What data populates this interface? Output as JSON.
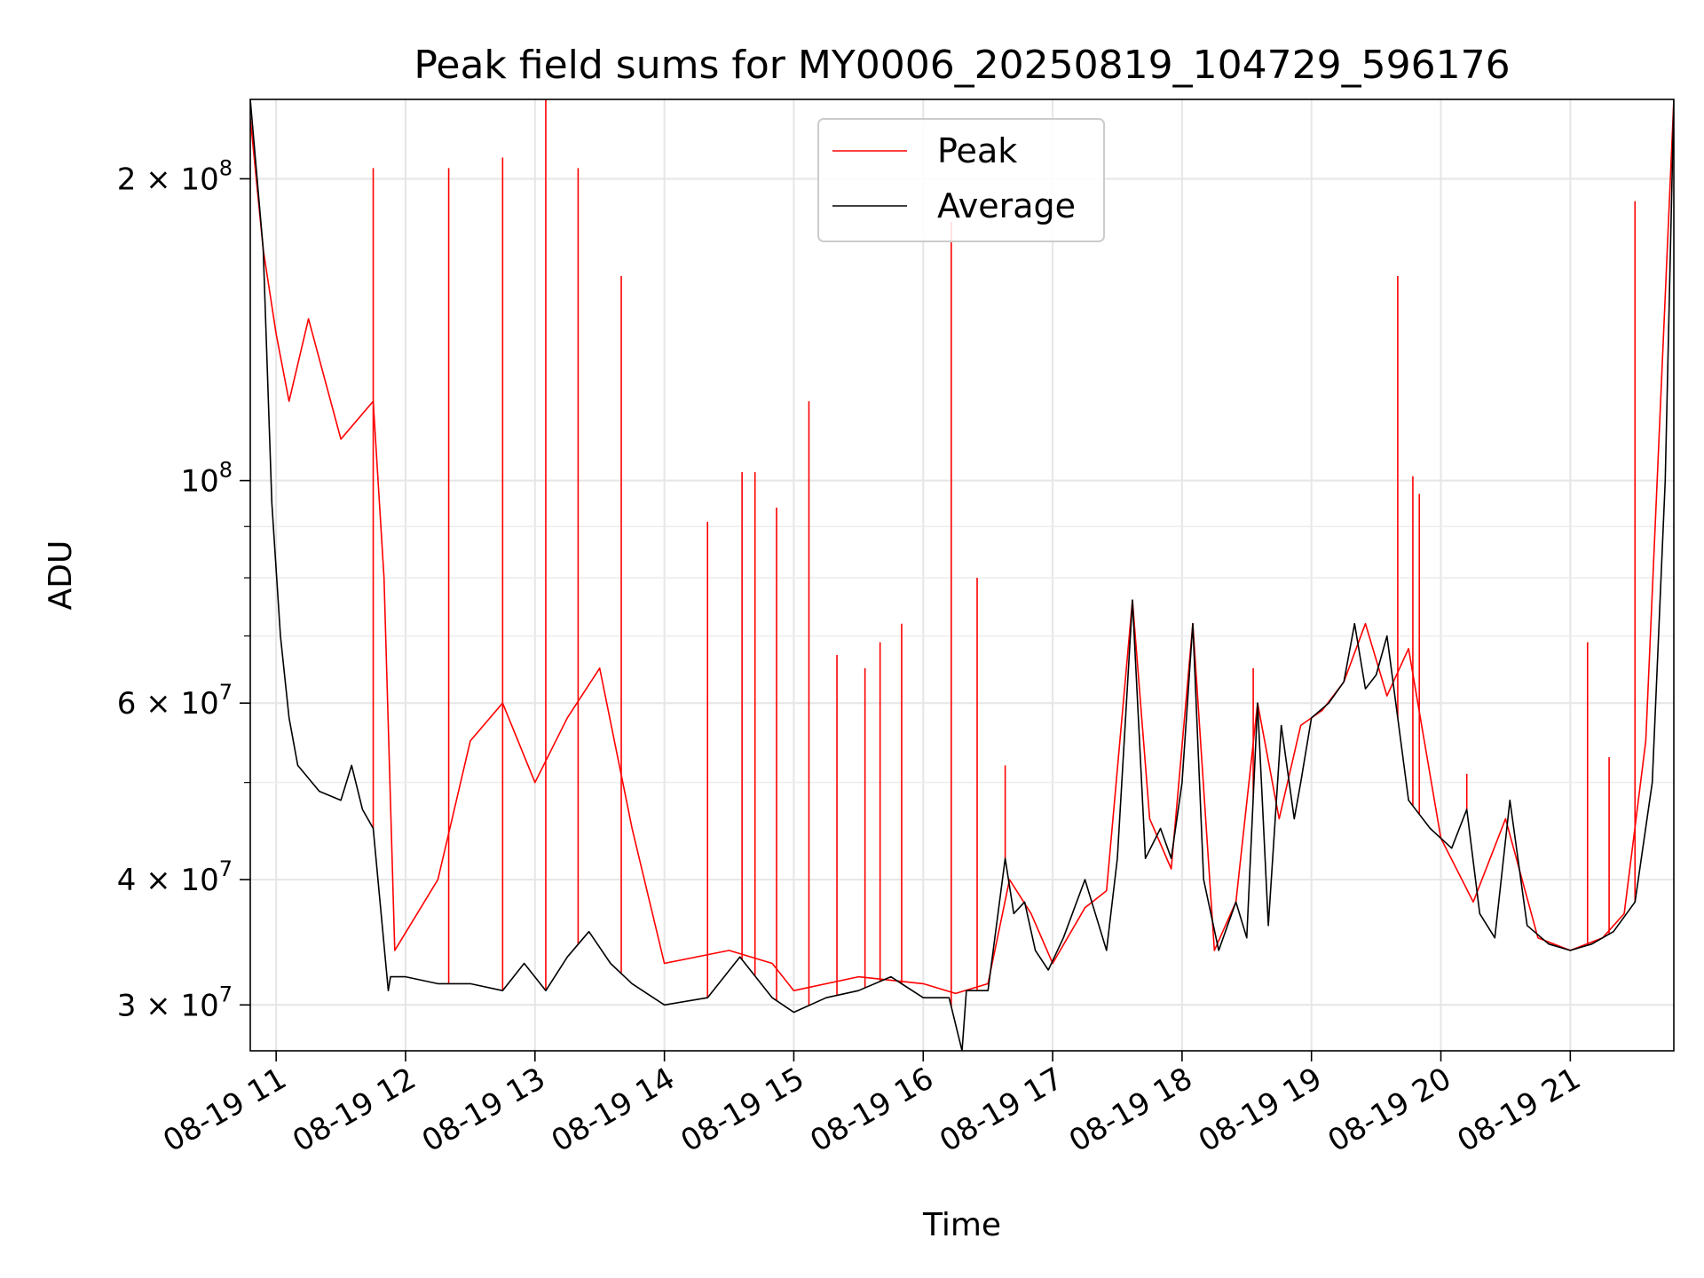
{
  "chart_data": {
    "type": "line",
    "title": "Peak field sums for MY0006_20250819_104729_596176",
    "xlabel": "Time",
    "ylabel": "ADU",
    "yscale": "log",
    "ylim": [
      27000000,
      240000000
    ],
    "xlim": [
      "2025-08-19 10:48",
      "2025-08-19 21:48"
    ],
    "grid": true,
    "legend_position": "top-center",
    "x_tick_labels": [
      "08-19 11",
      "08-19 12",
      "08-19 13",
      "08-19 14",
      "08-19 15",
      "08-19 16",
      "08-19 17",
      "08-19 18",
      "08-19 19",
      "08-19 20",
      "08-19 21"
    ],
    "x_ticks": [
      "2025-08-19 11:00",
      "2025-08-19 12:00",
      "2025-08-19 13:00",
      "2025-08-19 14:00",
      "2025-08-19 15:00",
      "2025-08-19 16:00",
      "2025-08-19 17:00",
      "2025-08-19 18:00",
      "2025-08-19 19:00",
      "2025-08-19 20:00",
      "2025-08-19 21:00"
    ],
    "y_tick_labels": [
      {
        "value": 30000000,
        "mantissa": "3",
        "exp": "7"
      },
      {
        "value": 40000000,
        "mantissa": "4",
        "exp": "7"
      },
      {
        "value": 60000000,
        "mantissa": "6",
        "exp": "7"
      },
      {
        "value": 100000000,
        "mantissa": "",
        "exp": "8"
      },
      {
        "value": 200000000,
        "mantissa": "2",
        "exp": "8"
      }
    ],
    "y_minor_ticks": [
      50000000,
      70000000,
      80000000,
      90000000
    ],
    "series": [
      {
        "name": "Peak",
        "color": "#ff0000",
        "x": [
          "2025-08-19 10:48",
          "2025-08-19 10:54",
          "2025-08-19 11:00",
          "2025-08-19 11:06",
          "2025-08-19 11:15",
          "2025-08-19 11:30",
          "2025-08-19 11:45",
          "2025-08-19 11:50",
          "2025-08-19 11:55",
          "2025-08-19 12:15",
          "2025-08-19 12:30",
          "2025-08-19 12:45",
          "2025-08-19 13:00",
          "2025-08-19 13:15",
          "2025-08-19 13:30",
          "2025-08-19 13:45",
          "2025-08-19 14:00",
          "2025-08-19 14:30",
          "2025-08-19 14:50",
          "2025-08-19 15:00",
          "2025-08-19 15:30",
          "2025-08-19 16:00",
          "2025-08-19 16:15",
          "2025-08-19 16:30",
          "2025-08-19 16:40",
          "2025-08-19 16:50",
          "2025-08-19 17:00",
          "2025-08-19 17:15",
          "2025-08-19 17:25",
          "2025-08-19 17:37",
          "2025-08-19 17:45",
          "2025-08-19 17:55",
          "2025-08-19 18:05",
          "2025-08-19 18:15",
          "2025-08-19 18:25",
          "2025-08-19 18:35",
          "2025-08-19 18:45",
          "2025-08-19 18:55",
          "2025-08-19 19:05",
          "2025-08-19 19:15",
          "2025-08-19 19:25",
          "2025-08-19 19:35",
          "2025-08-19 19:45",
          "2025-08-19 20:00",
          "2025-08-19 20:15",
          "2025-08-19 20:30",
          "2025-08-19 20:45",
          "2025-08-19 21:00",
          "2025-08-19 21:15",
          "2025-08-19 21:25",
          "2025-08-19 21:35",
          "2025-08-19 21:48"
        ],
        "y": [
          230000000,
          170000000,
          140000000,
          120000000,
          145000000,
          110000000,
          120000000,
          80000000,
          34000000,
          40000000,
          55000000,
          60000000,
          50000000,
          58000000,
          65000000,
          45000000,
          33000000,
          34000000,
          33000000,
          31000000,
          32000000,
          31500000,
          30800000,
          31500000,
          40000000,
          37000000,
          33000000,
          37500000,
          39000000,
          76000000,
          46000000,
          41000000,
          72000000,
          34000000,
          38000000,
          60000000,
          46000000,
          57000000,
          59000000,
          63000000,
          72000000,
          61000000,
          68000000,
          44000000,
          38000000,
          46000000,
          35000000,
          34000000,
          35000000,
          37000000,
          55000000,
          240000000
        ],
        "spikes": [
          {
            "x": "2025-08-19 11:45",
            "y": 205000000
          },
          {
            "x": "2025-08-19 12:20",
            "y": 205000000
          },
          {
            "x": "2025-08-19 12:45",
            "y": 210000000
          },
          {
            "x": "2025-08-19 13:05",
            "y": 240000000
          },
          {
            "x": "2025-08-19 13:20",
            "y": 205000000
          },
          {
            "x": "2025-08-19 13:40",
            "y": 160000000
          },
          {
            "x": "2025-08-19 14:20",
            "y": 91000000
          },
          {
            "x": "2025-08-19 14:36",
            "y": 102000000
          },
          {
            "x": "2025-08-19 14:42",
            "y": 102000000
          },
          {
            "x": "2025-08-19 14:52",
            "y": 94000000
          },
          {
            "x": "2025-08-19 15:07",
            "y": 120000000
          },
          {
            "x": "2025-08-19 15:20",
            "y": 67000000
          },
          {
            "x": "2025-08-19 15:33",
            "y": 65000000
          },
          {
            "x": "2025-08-19 15:40",
            "y": 69000000
          },
          {
            "x": "2025-08-19 15:50",
            "y": 72000000
          },
          {
            "x": "2025-08-19 16:13",
            "y": 181000000
          },
          {
            "x": "2025-08-19 16:25",
            "y": 80000000
          },
          {
            "x": "2025-08-19 16:38",
            "y": 52000000
          },
          {
            "x": "2025-08-19 18:33",
            "y": 65000000
          },
          {
            "x": "2025-08-19 19:40",
            "y": 160000000
          },
          {
            "x": "2025-08-19 19:47",
            "y": 101000000
          },
          {
            "x": "2025-08-19 19:50",
            "y": 97000000
          },
          {
            "x": "2025-08-19 20:12",
            "y": 51000000
          },
          {
            "x": "2025-08-19 21:08",
            "y": 69000000
          },
          {
            "x": "2025-08-19 21:18",
            "y": 53000000
          },
          {
            "x": "2025-08-19 21:30",
            "y": 190000000
          }
        ]
      },
      {
        "name": "Average",
        "color": "#000000",
        "x": [
          "2025-08-19 10:48",
          "2025-08-19 10:54",
          "2025-08-19 10:58",
          "2025-08-19 11:02",
          "2025-08-19 11:06",
          "2025-08-19 11:10",
          "2025-08-19 11:20",
          "2025-08-19 11:30",
          "2025-08-19 11:35",
          "2025-08-19 11:40",
          "2025-08-19 11:45",
          "2025-08-19 11:52",
          "2025-08-19 11:53",
          "2025-08-19 12:00",
          "2025-08-19 12:15",
          "2025-08-19 12:30",
          "2025-08-19 12:45",
          "2025-08-19 12:55",
          "2025-08-19 13:05",
          "2025-08-19 13:15",
          "2025-08-19 13:25",
          "2025-08-19 13:35",
          "2025-08-19 13:45",
          "2025-08-19 14:00",
          "2025-08-19 14:20",
          "2025-08-19 14:35",
          "2025-08-19 14:50",
          "2025-08-19 15:00",
          "2025-08-19 15:15",
          "2025-08-19 15:30",
          "2025-08-19 15:45",
          "2025-08-19 16:00",
          "2025-08-19 16:12",
          "2025-08-19 16:18",
          "2025-08-19 16:20",
          "2025-08-19 16:30",
          "2025-08-19 16:38",
          "2025-08-19 16:42",
          "2025-08-19 16:47",
          "2025-08-19 16:52",
          "2025-08-19 16:58",
          "2025-08-19 17:05",
          "2025-08-19 17:15",
          "2025-08-19 17:25",
          "2025-08-19 17:30",
          "2025-08-19 17:37",
          "2025-08-19 17:43",
          "2025-08-19 17:50",
          "2025-08-19 17:55",
          "2025-08-19 18:00",
          "2025-08-19 18:05",
          "2025-08-19 18:10",
          "2025-08-19 18:17",
          "2025-08-19 18:25",
          "2025-08-19 18:30",
          "2025-08-19 18:35",
          "2025-08-19 18:40",
          "2025-08-19 18:46",
          "2025-08-19 18:52",
          "2025-08-19 18:55",
          "2025-08-19 19:00",
          "2025-08-19 19:08",
          "2025-08-19 19:15",
          "2025-08-19 19:20",
          "2025-08-19 19:25",
          "2025-08-19 19:30",
          "2025-08-19 19:35",
          "2025-08-19 19:45",
          "2025-08-19 19:55",
          "2025-08-19 20:05",
          "2025-08-19 20:12",
          "2025-08-19 20:18",
          "2025-08-19 20:25",
          "2025-08-19 20:32",
          "2025-08-19 20:40",
          "2025-08-19 20:50",
          "2025-08-19 21:00",
          "2025-08-19 21:10",
          "2025-08-19 21:20",
          "2025-08-19 21:30",
          "2025-08-19 21:38",
          "2025-08-19 21:44",
          "2025-08-19 21:48"
        ],
        "y": [
          240000000,
          170000000,
          95000000,
          70000000,
          58000000,
          52000000,
          49000000,
          48000000,
          52000000,
          47000000,
          45000000,
          31000000,
          32000000,
          32000000,
          31500000,
          31500000,
          31000000,
          33000000,
          31000000,
          33500000,
          35500000,
          33000000,
          31500000,
          30000000,
          30500000,
          33500000,
          30500000,
          29500000,
          30500000,
          31000000,
          32000000,
          30500000,
          30500000,
          27000000,
          31000000,
          31000000,
          42000000,
          37000000,
          38000000,
          34000000,
          32500000,
          35000000,
          40000000,
          34000000,
          42000000,
          76000000,
          42000000,
          45000000,
          42000000,
          50000000,
          72000000,
          40000000,
          34000000,
          38000000,
          35000000,
          60000000,
          36000000,
          57000000,
          46000000,
          50000000,
          58000000,
          60000000,
          63000000,
          72000000,
          62000000,
          64000000,
          70000000,
          48000000,
          45000000,
          43000000,
          47000000,
          37000000,
          35000000,
          48000000,
          36000000,
          34500000,
          34000000,
          34500000,
          35500000,
          38000000,
          50000000,
          100000000,
          240000000
        ]
      }
    ]
  }
}
